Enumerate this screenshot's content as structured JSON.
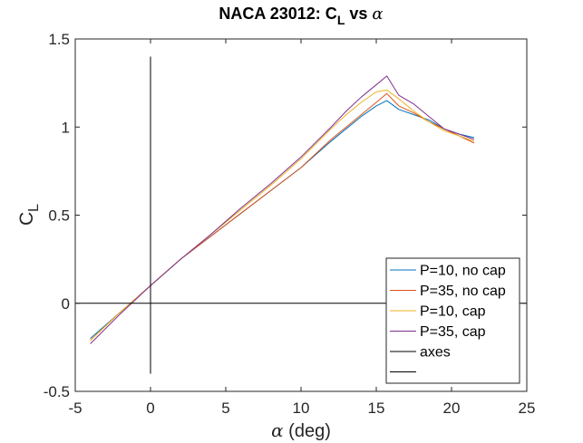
{
  "chart_data": {
    "type": "line",
    "title": {
      "main": "NACA 23012: C",
      "sub": "L",
      "suffix": " vs ",
      "greek": "α"
    },
    "xlabel": {
      "greek": "α",
      "text": " (deg)"
    },
    "ylabel": {
      "main": "C",
      "sub": "L"
    },
    "xlim": [
      -5,
      25
    ],
    "ylim": [
      -0.5,
      1.5
    ],
    "xticks": [
      -5,
      0,
      5,
      10,
      15,
      20,
      25
    ],
    "yticks": [
      -0.5,
      0,
      0.5,
      1,
      1.5
    ],
    "xtick_labels": [
      "-5",
      "0",
      "5",
      "10",
      "15",
      "20",
      "25"
    ],
    "ytick_labels": [
      "-0.5",
      "0",
      "0.5",
      "1",
      "1.5"
    ],
    "grid": false,
    "legend_position": "bottom-right",
    "series": [
      {
        "name": "P=10, no cap",
        "color": "#0072BD",
        "x": [
          -4,
          -2,
          0,
          2,
          4,
          6,
          8,
          10,
          12,
          13,
          14,
          15,
          15.7,
          16.5,
          17.5,
          18.5,
          19.5,
          20.5,
          21.5
        ],
        "y": [
          -0.2,
          -0.05,
          0.1,
          0.25,
          0.38,
          0.51,
          0.64,
          0.77,
          0.92,
          0.99,
          1.06,
          1.12,
          1.15,
          1.1,
          1.07,
          1.04,
          0.99,
          0.96,
          0.94
        ]
      },
      {
        "name": "P=35, no cap",
        "color": "#D95319",
        "x": [
          -4,
          -2,
          0,
          2,
          4,
          6,
          8,
          10,
          12,
          13,
          14,
          15,
          15.7,
          16.5,
          17.5,
          18.5,
          19.5,
          20.5,
          21.5
        ],
        "y": [
          -0.21,
          -0.05,
          0.1,
          0.25,
          0.38,
          0.51,
          0.64,
          0.77,
          0.93,
          1.0,
          1.07,
          1.14,
          1.19,
          1.12,
          1.08,
          1.03,
          0.99,
          0.95,
          0.91
        ]
      },
      {
        "name": "P=10, cap",
        "color": "#EDB120",
        "x": [
          -4,
          -2,
          0,
          2,
          4,
          6,
          8,
          10,
          12,
          13,
          14,
          15,
          15.7,
          16.5,
          17.5,
          18.5,
          19.5,
          20.5,
          21.5
        ],
        "y": [
          -0.21,
          -0.05,
          0.1,
          0.25,
          0.39,
          0.53,
          0.67,
          0.82,
          0.99,
          1.07,
          1.14,
          1.2,
          1.21,
          1.16,
          1.09,
          1.03,
          0.98,
          0.95,
          0.92
        ]
      },
      {
        "name": "P=35, cap",
        "color": "#7E2F8E",
        "x": [
          -4,
          -2,
          0,
          2,
          4,
          6,
          8,
          10,
          12,
          13,
          14,
          15,
          15.7,
          16.5,
          17.5,
          18.5,
          19.5,
          20.5,
          21.5
        ],
        "y": [
          -0.23,
          -0.06,
          0.1,
          0.25,
          0.39,
          0.54,
          0.68,
          0.83,
          1.0,
          1.09,
          1.17,
          1.24,
          1.29,
          1.18,
          1.13,
          1.06,
          0.99,
          0.96,
          0.93
        ]
      },
      {
        "name": "axes",
        "color": "#000000",
        "x": [
          -5,
          25
        ],
        "y": [
          0,
          0
        ]
      },
      {
        "name": "",
        "color": "#000000",
        "x": [
          0,
          0
        ],
        "y": [
          -0.4,
          1.4
        ]
      }
    ]
  }
}
